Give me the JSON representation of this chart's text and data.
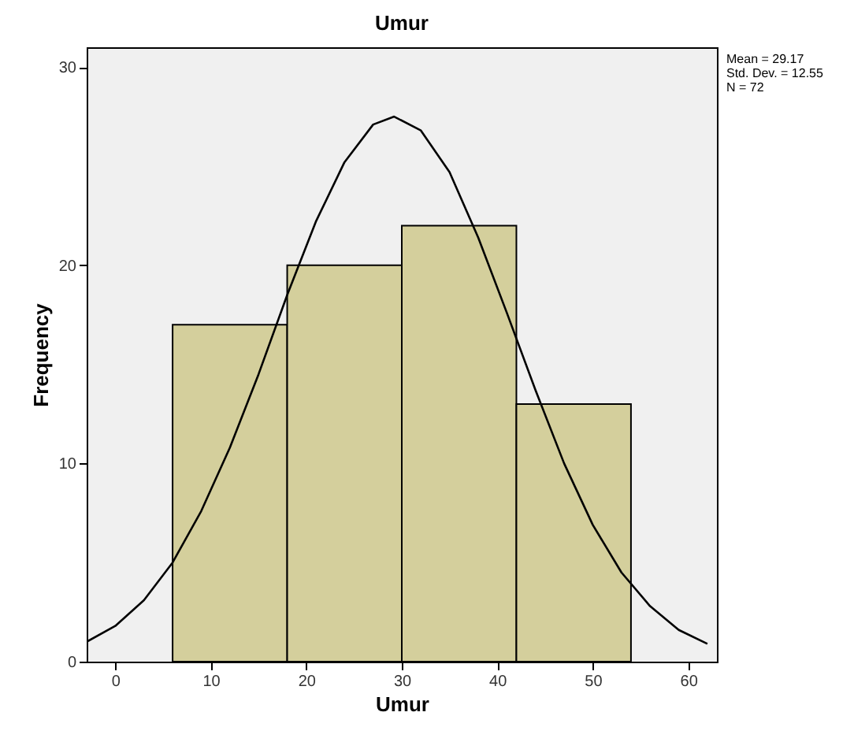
{
  "chart_data": {
    "type": "histogram",
    "title": "Umur",
    "xlabel": "Umur",
    "ylabel": "Frequency",
    "bins": [
      6,
      18,
      30,
      42,
      54
    ],
    "values": [
      17,
      20,
      22,
      13
    ],
    "color": "#d4cf9c",
    "series": [
      {
        "type": "line",
        "color": "#000000",
        "x": [
          -3,
          0,
          3,
          6,
          9,
          12,
          15,
          18,
          21,
          24,
          27,
          29.2,
          32,
          35,
          38,
          41,
          44,
          47,
          50,
          53,
          56,
          59,
          62
        ],
        "values": [
          1.0,
          1.8,
          3.1,
          5.0,
          7.6,
          10.8,
          14.5,
          18.5,
          22.2,
          25.2,
          27.1,
          27.5,
          26.8,
          24.7,
          21.4,
          17.6,
          13.7,
          10.0,
          6.9,
          4.5,
          2.8,
          1.6,
          0.9
        ]
      }
    ],
    "xlim": [
      -3,
      63
    ],
    "xticks": [
      0,
      10,
      20,
      30,
      40,
      50,
      60
    ],
    "ylim": [
      0,
      31
    ],
    "yticks": [
      0,
      10,
      20,
      30
    ],
    "grid": false,
    "marker": "none",
    "line_style": "solid",
    "annotations": [
      "Mean = 29.17",
      "Std. Dev. = 12.55",
      "N = 72"
    ]
  }
}
